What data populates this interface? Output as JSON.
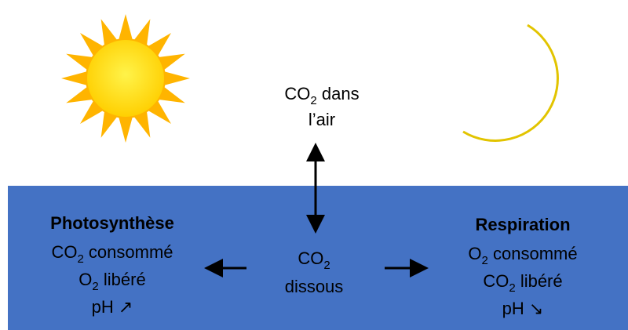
{
  "air": {
    "lines": [
      [
        {
          "t": "CO"
        },
        {
          "s": "2"
        },
        {
          "t": " dans"
        }
      ],
      [
        {
          "t": "l’air"
        }
      ]
    ]
  },
  "photosynthesis": {
    "title": "Photosynthèse",
    "lines": [
      [
        {
          "t": "CO"
        },
        {
          "s": "2"
        },
        {
          "t": " consommé"
        }
      ],
      [
        {
          "t": "O"
        },
        {
          "s": "2"
        },
        {
          "t": " libéré"
        }
      ],
      [
        {
          "t": "pH ↗"
        }
      ]
    ]
  },
  "dissolved": {
    "lines": [
      [
        {
          "t": "CO"
        },
        {
          "s": "2"
        }
      ],
      [
        {
          "t": "dissous"
        }
      ]
    ]
  },
  "respiration": {
    "title": "Respiration",
    "lines": [
      [
        {
          "t": "O"
        },
        {
          "s": "2"
        },
        {
          "t": " consommé"
        }
      ],
      [
        {
          "t": "CO"
        },
        {
          "s": "2"
        },
        {
          "t": " libéré"
        }
      ],
      [
        {
          "t": "pH ↘"
        }
      ]
    ]
  }
}
